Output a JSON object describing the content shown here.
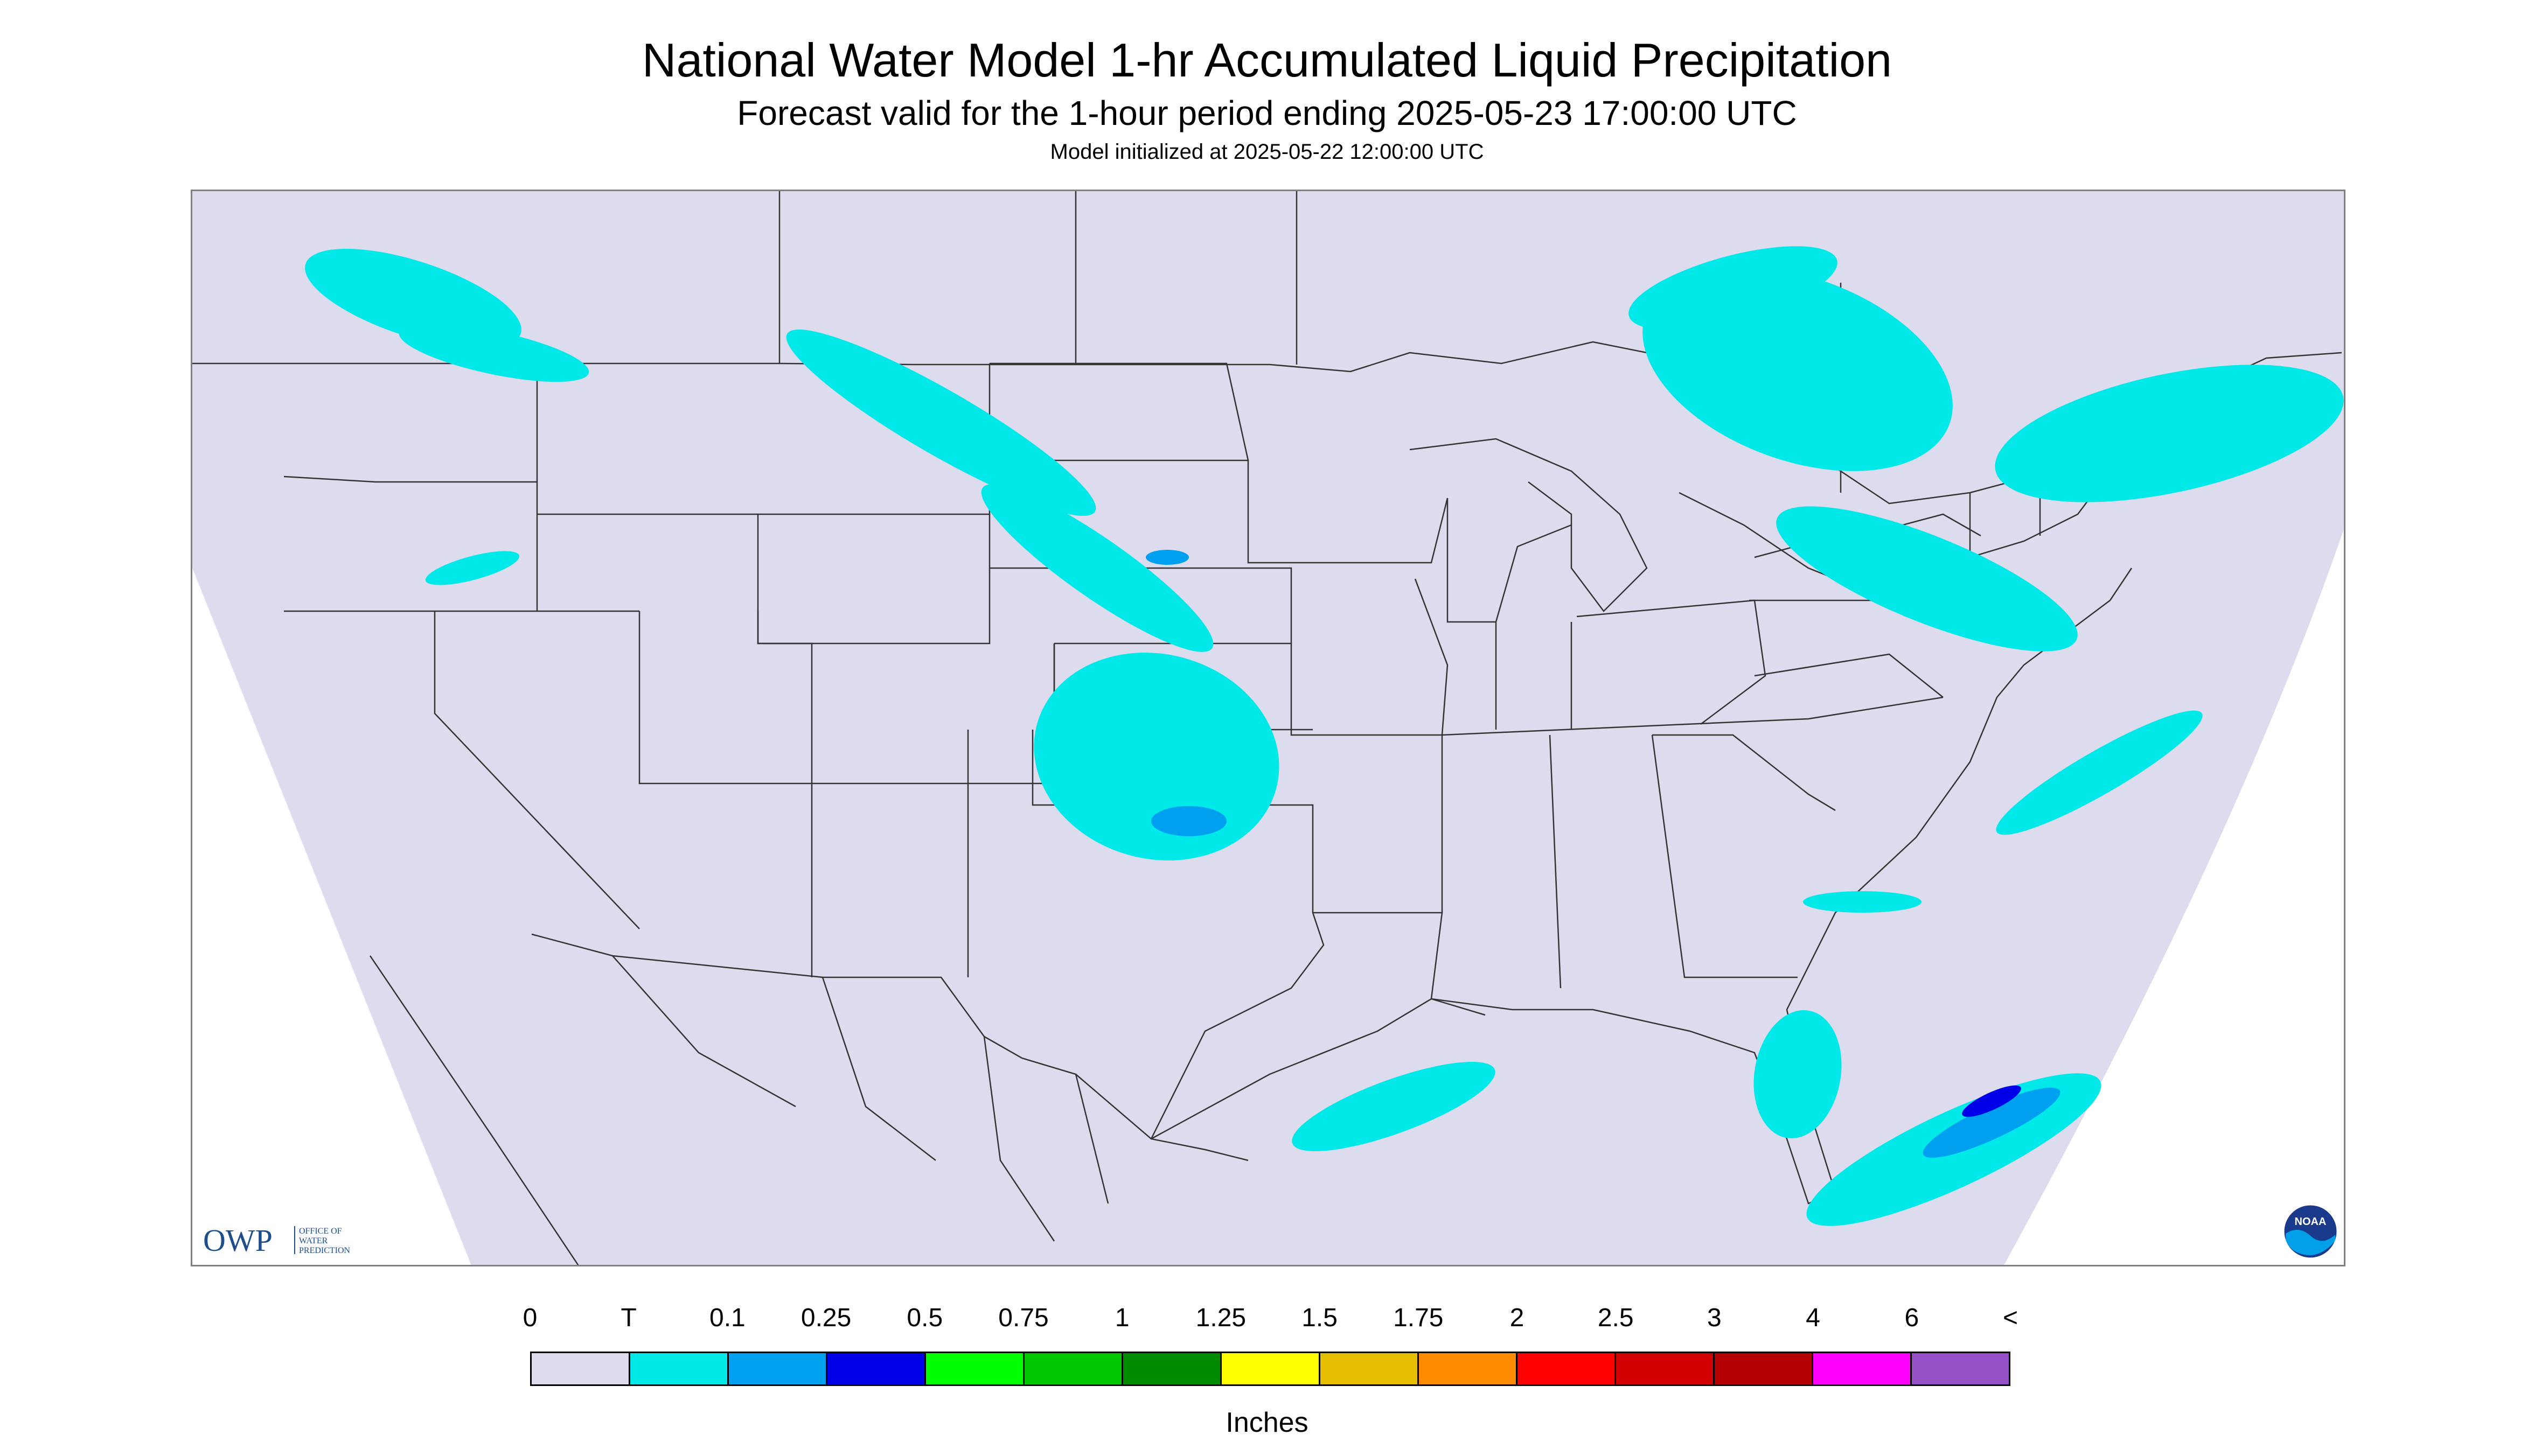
{
  "header": {
    "title": "National Water Model 1-hr Accumulated Liquid Precipitation",
    "subtitle": "Forecast valid for the 1-hour period ending 2025-05-23 17:00:00 UTC",
    "init": "Model initialized at 2025-05-22 12:00:00 UTC"
  },
  "map": {
    "background_color": "#dcdcee",
    "outside_color": "#ffffff",
    "border_color": "#333333",
    "precip_colors": {
      "trace": "#00e8e8",
      "light": "#00a0f0",
      "moderate": "#0000e8"
    }
  },
  "logos": {
    "owp_text": "OWP",
    "owp_line1": "OFFICE OF",
    "owp_line2": "WATER",
    "owp_line3": "PREDICTION",
    "noaa_text": "NOAA"
  },
  "legend": {
    "labels": [
      "0",
      "T",
      "0.1",
      "0.25",
      "0.5",
      "0.75",
      "1",
      "1.25",
      "1.5",
      "1.75",
      "2",
      "2.5",
      "3",
      "4",
      "6",
      "<"
    ],
    "colors": [
      "#dcdcee",
      "#00e8e8",
      "#00a0f0",
      "#0000e8",
      "#00ff00",
      "#00c800",
      "#008c00",
      "#ffff00",
      "#e6be00",
      "#ff8c00",
      "#ff0000",
      "#d20000",
      "#b40000",
      "#ff00ff",
      "#9650c8"
    ],
    "units": "Inches"
  }
}
